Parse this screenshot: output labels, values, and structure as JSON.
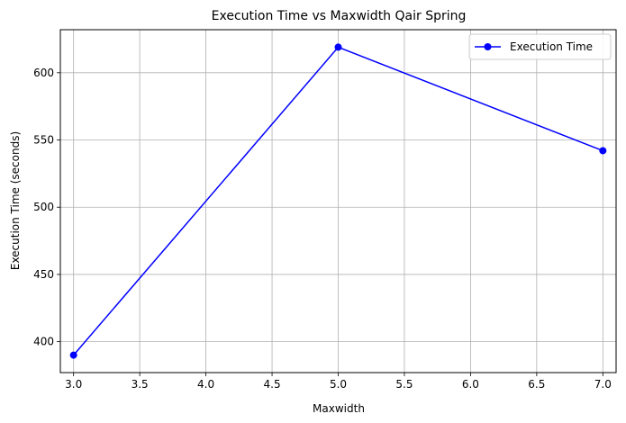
{
  "chart_data": {
    "type": "line",
    "title": "Execution Time vs Maxwidth Qair Spring",
    "xlabel": "Maxwidth",
    "ylabel": "Execution Time (seconds)",
    "x": [
      3.0,
      5.0,
      7.0
    ],
    "series": [
      {
        "name": "Execution Time",
        "values": [
          390,
          619,
          542
        ],
        "color": "#0000ff",
        "marker": "circle"
      }
    ],
    "xlim": [
      2.9,
      7.1
    ],
    "ylim": [
      377,
      632
    ],
    "xticks": [
      3.0,
      3.5,
      4.0,
      4.5,
      5.0,
      5.5,
      6.0,
      6.5,
      7.0
    ],
    "xtick_labels": [
      "3.0",
      "3.5",
      "4.0",
      "4.5",
      "5.0",
      "5.5",
      "6.0",
      "6.5",
      "7.0"
    ],
    "yticks": [
      400,
      450,
      500,
      550,
      600
    ],
    "ytick_labels": [
      "400",
      "450",
      "500",
      "550",
      "600"
    ],
    "grid": true,
    "legend_position": "top-right",
    "grid_color": "#b0b0b0"
  }
}
